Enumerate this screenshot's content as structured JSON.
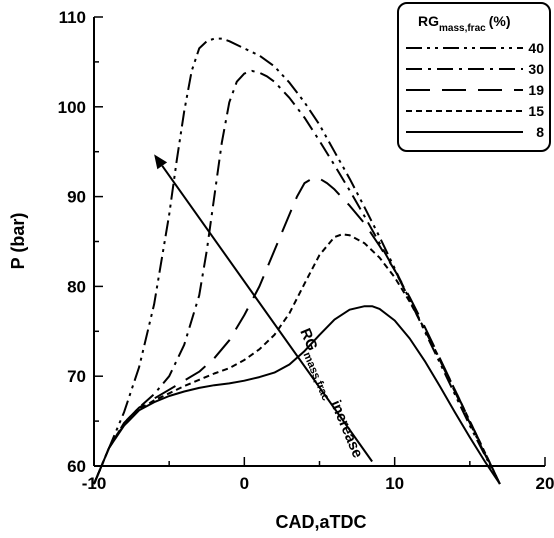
{
  "chart_data": {
    "type": "line",
    "xlabel": "CAD,aTDC",
    "ylabel": "P (bar)",
    "xlim": [
      -10,
      20
    ],
    "ylim": [
      60,
      110
    ],
    "x_ticks": [
      "-10",
      "0",
      "10",
      "20"
    ],
    "y_ticks": [
      "60",
      "70",
      "80",
      "90",
      "100",
      "110"
    ],
    "grid": false,
    "legend": {
      "position": "top-right",
      "title_main": "RG",
      "title_sub": "mass,frac",
      "title_unit": "(%)"
    },
    "annotation": {
      "main": "RG",
      "sub": "mass,frac",
      "tail": " increase"
    },
    "series": [
      {
        "name": "40",
        "dash": "dashdotdot",
        "x": [
          -10,
          -9,
          -8,
          -7,
          -6,
          -5,
          -4.5,
          -4,
          -3.5,
          -3,
          -2.5,
          -2,
          -1.5,
          -1,
          0,
          1,
          2,
          3,
          4,
          5,
          6,
          7,
          8,
          9,
          10,
          11,
          12,
          13,
          14,
          15,
          16,
          17
        ],
        "y": [
          58,
          62,
          66,
          71,
          78,
          88,
          94,
          99.5,
          104,
          106.5,
          107.3,
          107.6,
          107.6,
          107.3,
          106.5,
          105.7,
          104.5,
          102.7,
          100.5,
          98,
          95,
          92,
          88.8,
          85.5,
          82,
          78.5,
          75,
          71.5,
          68,
          64.5,
          61.2,
          58
        ]
      },
      {
        "name": "30",
        "dash": "dashdot",
        "x": [
          -10,
          -9,
          -8,
          -7,
          -6,
          -5,
          -4,
          -3,
          -2.5,
          -2,
          -1.5,
          -1,
          -0.5,
          0,
          0.5,
          1,
          1.5,
          2,
          3,
          4,
          5,
          6,
          7,
          8,
          9,
          10,
          11,
          12,
          13,
          14,
          15,
          16,
          17
        ],
        "y": [
          58,
          62,
          64.8,
          66.5,
          68,
          70,
          73.5,
          79,
          84,
          90,
          96,
          100.5,
          102.8,
          103.7,
          104,
          103.8,
          103.4,
          102.8,
          101,
          98.8,
          96.2,
          93.5,
          90.7,
          87.8,
          84.8,
          81.8,
          78.5,
          75.2,
          71.8,
          68.3,
          64.8,
          61.3,
          58
        ]
      },
      {
        "name": "19",
        "dash": "longdash",
        "x": [
          -10,
          -9,
          -8,
          -7,
          -6,
          -5,
          -4,
          -3,
          -2,
          -1,
          0,
          1,
          2,
          3,
          3.5,
          4,
          4.5,
          5,
          5.5,
          6,
          7,
          8,
          9,
          10,
          11,
          12,
          13,
          14,
          15,
          16,
          17
        ],
        "y": [
          58,
          62,
          64.8,
          66.5,
          67.5,
          68.5,
          69.5,
          70.5,
          72,
          74,
          76.8,
          80,
          84,
          88,
          90,
          91.5,
          92,
          92,
          91.5,
          90.8,
          89,
          87,
          84.5,
          81.8,
          78.8,
          75.5,
          72,
          68.5,
          65,
          61.5,
          58
        ]
      },
      {
        "name": "15",
        "dash": "shortdash",
        "x": [
          -10,
          -9,
          -8,
          -7,
          -6,
          -5,
          -4,
          -3,
          -2,
          -1,
          0,
          1,
          2,
          3,
          4,
          5,
          6,
          6.5,
          7,
          8,
          9,
          10,
          11,
          12,
          13,
          14,
          15,
          16,
          17
        ],
        "y": [
          58,
          62,
          64.6,
          66.3,
          67.3,
          68.1,
          68.9,
          69.6,
          70.3,
          70.9,
          71.8,
          73,
          74.6,
          77,
          80.3,
          83.5,
          85.5,
          85.8,
          85.7,
          84.8,
          83.2,
          81,
          78.3,
          75.2,
          71.9,
          68.5,
          65,
          61.5,
          58
        ]
      },
      {
        "name": "8",
        "dash": "solid",
        "x": [
          -10,
          -9,
          -8,
          -7,
          -6,
          -5,
          -4,
          -3,
          -2,
          -1,
          0,
          1,
          2,
          3,
          4,
          5,
          6,
          7,
          8,
          8.5,
          9,
          10,
          11,
          12,
          13,
          14,
          15,
          16,
          17
        ],
        "y": [
          58,
          62,
          64.5,
          66.2,
          67.1,
          67.8,
          68.3,
          68.7,
          69,
          69.2,
          69.5,
          69.9,
          70.4,
          71.3,
          72.8,
          74.6,
          76.3,
          77.4,
          77.8,
          77.8,
          77.5,
          76.2,
          74.2,
          71.7,
          68.9,
          66,
          63.2,
          60.5,
          58
        ]
      }
    ],
    "arrow": {
      "from": [
        8.5,
        60.5
      ],
      "to": [
        -6,
        94.7
      ]
    }
  }
}
